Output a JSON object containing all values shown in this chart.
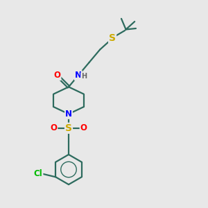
{
  "bg_color": "#e8e8e8",
  "bond_color": "#2d6b5e",
  "bond_width": 1.6,
  "atom_colors": {
    "O": "#ff0000",
    "N": "#0000ff",
    "S_sulfonyl": "#ccaa00",
    "S_thio": "#ccaa00",
    "Cl": "#00bb00",
    "H": "#666666"
  },
  "font_size_atom": 8.5,
  "font_size_H": 7.0
}
